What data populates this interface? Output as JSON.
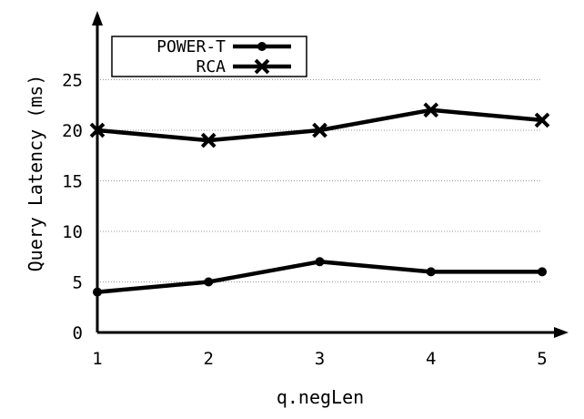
{
  "chart_data": {
    "type": "line",
    "xlabel": "q.negLen",
    "ylabel": "Query Latency (ms)",
    "x": [
      1,
      2,
      3,
      4,
      5
    ],
    "xlim": [
      1,
      5
    ],
    "ylim": [
      0,
      30
    ],
    "yticks": [
      0,
      5,
      10,
      15,
      20,
      25
    ],
    "grid": "horizontal dotted",
    "legend": "top-left",
    "series": [
      {
        "name": "POWER-T",
        "marker": "circle",
        "values": [
          4,
          5,
          7,
          6,
          6
        ]
      },
      {
        "name": "RCA",
        "marker": "x",
        "values": [
          20,
          19,
          20,
          22,
          21
        ]
      }
    ],
    "color": "#000000"
  }
}
